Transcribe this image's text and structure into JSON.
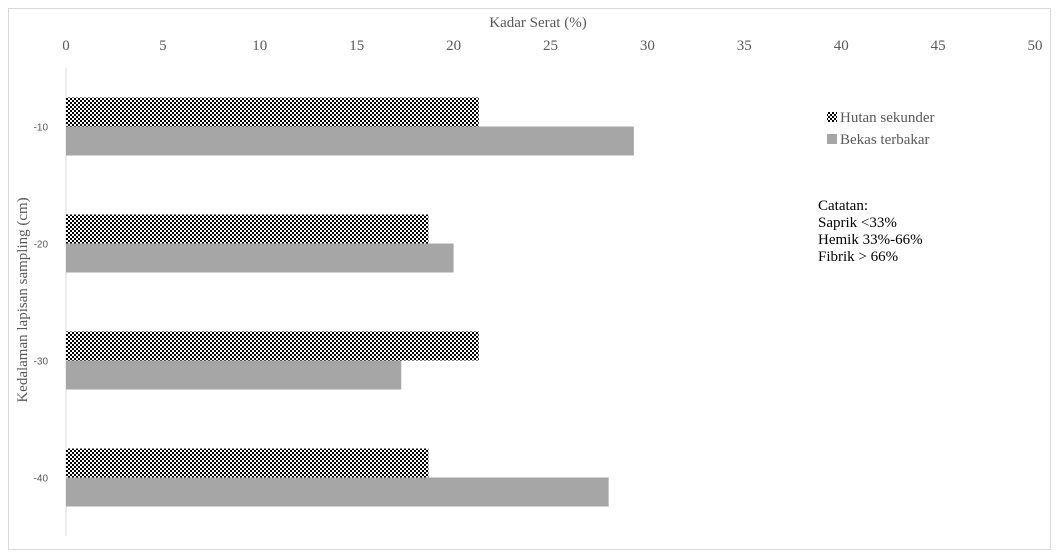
{
  "chart_data": {
    "type": "bar",
    "orientation": "horizontal",
    "title": "",
    "xlabel": "Kadar Serat (%)",
    "ylabel": "Kedalaman lapisan sampling (cm)",
    "xlim": [
      0,
      50
    ],
    "xticks": [
      "0",
      "5",
      "10",
      "15",
      "20",
      "25",
      "30",
      "35",
      "40",
      "45",
      "50"
    ],
    "x_axis_position": "top",
    "categories": [
      "-10",
      "-20",
      "-30",
      "-40"
    ],
    "series": [
      {
        "name": "Hutan sekunder",
        "values": [
          21.3,
          18.7,
          21.3,
          18.7
        ],
        "color": "#000000",
        "pattern": "dotted-checker"
      },
      {
        "name": "Bekas terbakar",
        "values": [
          29.3,
          20.0,
          17.3,
          28.0
        ],
        "color": "#a6a6a6",
        "pattern": "solid"
      }
    ],
    "grid": false,
    "legend_position": "right"
  },
  "note": {
    "heading": "Catatan:",
    "lines": [
      "Saprik <33%",
      "Hemik 33%-66%",
      "Fibrik > 66%"
    ]
  }
}
